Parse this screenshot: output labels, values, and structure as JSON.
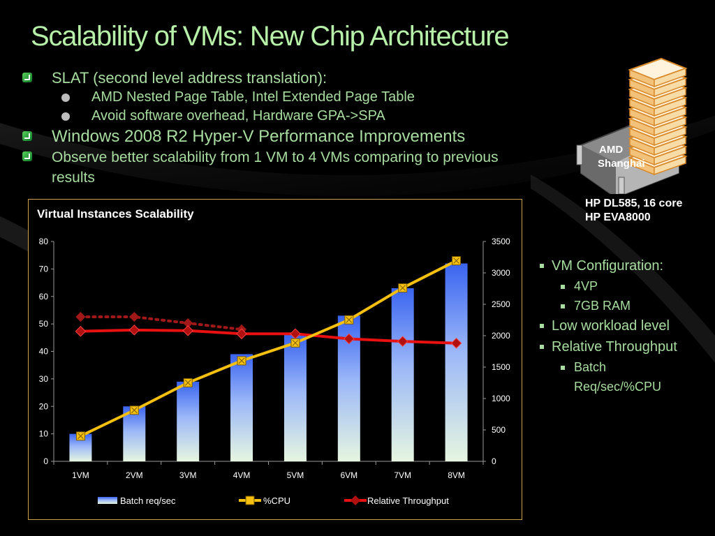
{
  "slide": {
    "title": "Scalability of VMs: New Chip Architecture",
    "bullets": [
      {
        "text": "SLAT (second level address translation):",
        "level": 1
      },
      {
        "text": "AMD Nested Page Table, Intel Extended Page Table",
        "level": 2
      },
      {
        "text": "Avoid software overhead, Hardware GPA->SPA",
        "level": 2
      },
      {
        "text": "Windows 2008 R2 Hyper-V Performance Improvements",
        "level": 1
      },
      {
        "text": "Observe better scalability from 1 VM to 4 VMs comparing to previous results",
        "level": 1
      }
    ],
    "server": {
      "chip_label_line1": "AMD",
      "chip_label_line2": "Shanghai",
      "caption_line1": "HP DL585, 16 core",
      "caption_line2": "HP EVA8000"
    },
    "right_list": {
      "vm_config": "VM Configuration:",
      "vp": "4VP",
      "ram": "7GB RAM",
      "workload": "Low workload level",
      "rel_tp": "Relative Throughput",
      "batch1": "Batch",
      "batch2": "Req/sec/%CPU"
    },
    "colors": {
      "title": "#b7f0a8",
      "bullet_text": "#a8dca0",
      "chart_border": "#c9a24a",
      "bar_top": "#3a64f0",
      "bar_bottom": "#e6f6e0",
      "cpu_line": "#f5c010",
      "rel_line": "#e81010",
      "rel_dotted": "#a01818"
    }
  },
  "chart_data": {
    "type": "bar",
    "title": "Virtual Instances Scalability",
    "categories": [
      "1VM",
      "2VM",
      "3VM",
      "4VM",
      "5VM",
      "6VM",
      "7VM",
      "8VM"
    ],
    "y_left": {
      "min": 0,
      "max": 80,
      "ticks": [
        "0",
        "10",
        "20",
        "30",
        "40",
        "50",
        "60",
        "70",
        "80"
      ]
    },
    "y_right": {
      "min": 0,
      "max": 3500,
      "ticks": [
        "0",
        "500",
        "1000",
        "1500",
        "2000",
        "2500",
        "3000",
        "3500"
      ]
    },
    "series": [
      {
        "name": "Batch req/sec",
        "kind": "bar",
        "axis": "left",
        "values": [
          10,
          20,
          29,
          39,
          46,
          53,
          63,
          72
        ]
      },
      {
        "name": "%CPU",
        "kind": "line",
        "axis": "left",
        "values": [
          9.2,
          18.6,
          28.6,
          36.6,
          43.1,
          51.5,
          63.1,
          73.0
        ]
      },
      {
        "name": "Relative Throughput",
        "kind": "line",
        "axis": "right",
        "values": [
          2070,
          2090,
          2080,
          2030,
          2030,
          1950,
          1910,
          1880
        ]
      },
      {
        "name": "",
        "kind": "dotted-line",
        "axis": "right",
        "values": [
          2300,
          2300,
          2200,
          2100,
          null,
          null,
          null,
          null
        ]
      }
    ],
    "legend": "bottom",
    "grid": false
  }
}
